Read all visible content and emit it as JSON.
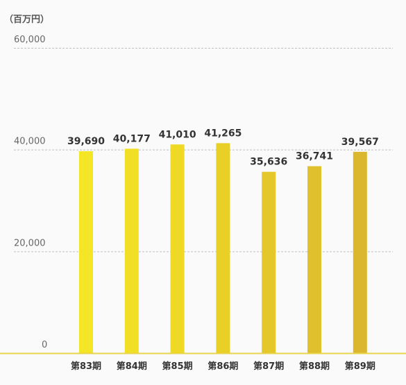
{
  "chart_data": {
    "type": "bar",
    "unit_label": "（百万円）",
    "categories": [
      "第83期",
      "第84期",
      "第85期",
      "第86期",
      "第87期",
      "第88期",
      "第89期"
    ],
    "values": [
      39690,
      40177,
      41010,
      41265,
      35636,
      36741,
      39567
    ],
    "value_labels": [
      "39,690",
      "40,177",
      "41,010",
      "41,265",
      "35,636",
      "36,741",
      "39,567"
    ],
    "yticks": [
      0,
      20000,
      40000,
      60000
    ],
    "ytick_labels": [
      "0",
      "20,000",
      "40,000",
      "60,000"
    ],
    "ylim": [
      0,
      60000
    ],
    "grid": true,
    "bar_colors": [
      "#f4e526",
      "#f1df25",
      "#eed925",
      "#e9d027",
      "#e4c72a",
      "#e0c02c",
      "#dbb72f"
    ],
    "baseline_color": "#e8d44a"
  }
}
